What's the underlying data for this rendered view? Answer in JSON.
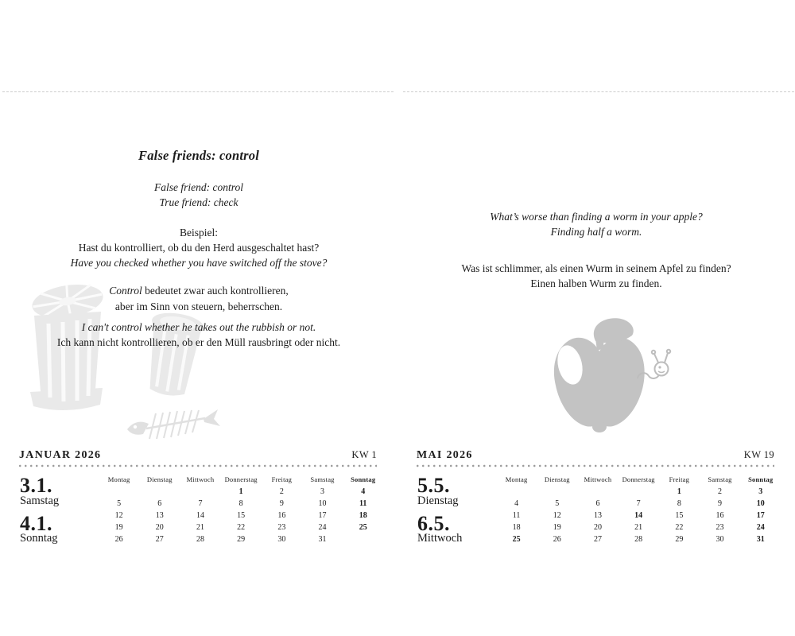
{
  "colors": {
    "text": "#1c1c1c",
    "illustration_light": "#e9e9e9",
    "illustration_fish": "#e0e0e0",
    "illustration_apple": "#c3c3c3",
    "dot_separator": "#9b9b9b",
    "perforation": "#cdcdcd"
  },
  "left_page": {
    "title": "False friends: control",
    "subtitle_lines": [
      "False friend: control",
      "True friend: check"
    ],
    "example_label": "Beispiel:",
    "example_de": "Hast du kontrolliert, ob du den Herd ausgeschaltet hast?",
    "example_en": "Have you checked whether you have switched off the stove?",
    "explain_em": "Control",
    "explain_rest": " bedeutet zwar auch kontrollieren,",
    "explain_line2": "aber im Sinn von steuern, beherrschen.",
    "usage_en": "I can't control whether he takes out the rubbish or not.",
    "usage_de": "Ich kann nicht kontrollieren, ob er den Müll rausbringt oder nicht.",
    "illustration": "trash-cans-and-fish-skeleton",
    "calendar": {
      "month_label": "JANUAR 2026",
      "week_label": "KW 1",
      "date1": "3.1.",
      "day1": "Samstag",
      "date2": "4.1.",
      "day2": "Sonntag",
      "day_headers": [
        "Montag",
        "Dienstag",
        "Mittwoch",
        "Donnerstag",
        "Freitag",
        "Samstag",
        "Sonntag"
      ],
      "weeks": [
        [
          "",
          "",
          "",
          "1",
          "2",
          "3",
          "4"
        ],
        [
          "5",
          "6",
          "7",
          "8",
          "9",
          "10",
          "11"
        ],
        [
          "12",
          "13",
          "14",
          "15",
          "16",
          "17",
          "18"
        ],
        [
          "19",
          "20",
          "21",
          "22",
          "23",
          "24",
          "25"
        ],
        [
          "26",
          "27",
          "28",
          "29",
          "30",
          "31",
          ""
        ]
      ],
      "bold_days": [
        1,
        4,
        11,
        18,
        25
      ]
    }
  },
  "right_page": {
    "joke_en_lines": [
      "What’s worse than finding a worm in your apple?",
      "Finding half a worm."
    ],
    "joke_de_lines": [
      "Was ist schlimmer, als einen Wurm in seinem Apfel zu finden?",
      "Einen halben Wurm zu finden."
    ],
    "illustration": "apple-with-worm",
    "calendar": {
      "month_label": "MAI 2026",
      "week_label": "KW 19",
      "date1": "5.5.",
      "day1": "Dienstag",
      "date2": "6.5.",
      "day2": "Mittwoch",
      "day_headers": [
        "Montag",
        "Dienstag",
        "Mittwoch",
        "Donnerstag",
        "Freitag",
        "Samstag",
        "Sonntag"
      ],
      "weeks": [
        [
          "",
          "",
          "",
          "",
          "1",
          "2",
          "3"
        ],
        [
          "4",
          "5",
          "6",
          "7",
          "8",
          "9",
          "10"
        ],
        [
          "11",
          "12",
          "13",
          "14",
          "15",
          "16",
          "17"
        ],
        [
          "18",
          "19",
          "20",
          "21",
          "22",
          "23",
          "24"
        ],
        [
          "25",
          "26",
          "27",
          "28",
          "29",
          "30",
          "31"
        ]
      ],
      "bold_days": [
        1,
        3,
        10,
        14,
        17,
        24,
        25,
        31
      ]
    }
  }
}
